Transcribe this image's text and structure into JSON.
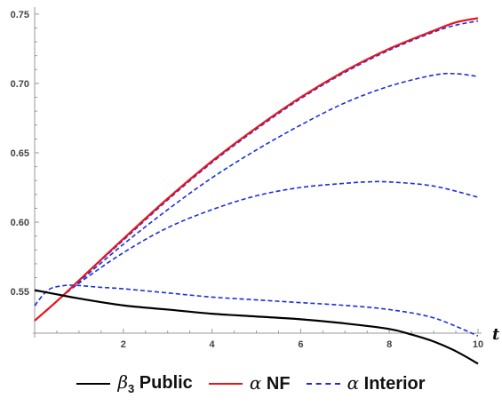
{
  "chart_data": {
    "type": "line",
    "xlabel": "t",
    "xlim": [
      0,
      10
    ],
    "ylim": [
      0.52,
      0.755
    ],
    "x_ticks": [
      2,
      4,
      6,
      8,
      10
    ],
    "y_ticks": [
      0.55,
      0.6,
      0.65,
      0.7,
      0.75
    ],
    "x_tick_labels": [
      "2",
      "4",
      "6",
      "8",
      "10"
    ],
    "y_tick_labels": [
      "0.55",
      "0.60",
      "0.65",
      "0.70",
      "0.75"
    ],
    "legend_position": "bottom",
    "series": [
      {
        "legend_group": "beta3",
        "color": "#000000",
        "style": "solid",
        "x": [
          0,
          0.5,
          1,
          2,
          3,
          4,
          5,
          6,
          7,
          8,
          8.5,
          9,
          9.5,
          10
        ],
        "y": [
          0.551,
          0.548,
          0.545,
          0.54,
          0.537,
          0.534,
          0.532,
          0.53,
          0.527,
          0.523,
          0.519,
          0.514,
          0.507,
          0.498
        ]
      },
      {
        "legend_group": "alpha_nf",
        "color": "#e8141c",
        "style": "solid",
        "x": [
          0,
          0.5,
          1,
          2,
          3,
          4,
          5,
          6,
          7,
          8,
          9,
          9.5,
          10
        ],
        "y": [
          0.529,
          0.543,
          0.558,
          0.588,
          0.617,
          0.644,
          0.668,
          0.69,
          0.709,
          0.725,
          0.738,
          0.744,
          0.747
        ]
      },
      {
        "legend_group": "alpha_interior",
        "color": "#1a2ee0",
        "style": "dashed",
        "x": [
          0,
          0.5,
          1,
          2,
          3,
          4,
          5,
          6,
          7,
          8,
          9,
          9.5,
          10
        ],
        "y": [
          0.529,
          0.543,
          0.558,
          0.587,
          0.616,
          0.643,
          0.667,
          0.689,
          0.708,
          0.724,
          0.737,
          0.742,
          0.745
        ]
      },
      {
        "legend_group": "alpha_interior",
        "color": "#1a2ee0",
        "style": "dashed",
        "x": [
          0,
          0.5,
          1,
          2,
          3,
          4,
          5,
          6,
          7,
          8,
          9,
          9.5,
          10
        ],
        "y": [
          0.529,
          0.543,
          0.557,
          0.584,
          0.609,
          0.632,
          0.652,
          0.67,
          0.686,
          0.698,
          0.706,
          0.707,
          0.705
        ]
      },
      {
        "legend_group": "alpha_interior",
        "color": "#1a2ee0",
        "style": "dashed",
        "x": [
          0,
          0.5,
          1,
          2,
          3,
          4,
          5,
          6,
          7,
          7.5,
          8,
          9,
          10
        ],
        "y": [
          0.529,
          0.543,
          0.556,
          0.578,
          0.596,
          0.609,
          0.619,
          0.625,
          0.628,
          0.629,
          0.629,
          0.626,
          0.618
        ]
      },
      {
        "legend_group": "alpha_interior",
        "color": "#1a2ee0",
        "style": "dashed",
        "x": [
          0,
          0.3,
          0.6,
          0.9,
          1.5,
          2,
          3,
          4,
          5,
          6,
          7,
          8,
          9,
          10
        ],
        "y": [
          0.54,
          0.551,
          0.554,
          0.5545,
          0.553,
          0.552,
          0.549,
          0.546,
          0.544,
          0.542,
          0.54,
          0.537,
          0.531,
          0.518
        ]
      }
    ]
  },
  "legend": {
    "beta3": {
      "symbol": "β",
      "sub": "3",
      "label": "Public",
      "color": "#000000",
      "style": "solid"
    },
    "alpha_nf": {
      "symbol": "α",
      "label": "NF",
      "color": "#e8141c",
      "style": "solid"
    },
    "alpha_interior": {
      "symbol": "α",
      "label": "Interior",
      "color": "#1a2ee0",
      "style": "dashed"
    }
  }
}
